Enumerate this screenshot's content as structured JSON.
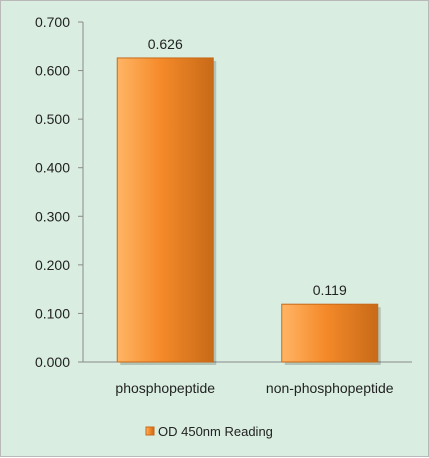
{
  "chart_data": {
    "type": "bar",
    "categories": [
      "phosphopeptide",
      "non-phosphopeptide"
    ],
    "values": [
      0.626,
      0.119
    ],
    "data_labels": [
      "0.626",
      "0.119"
    ],
    "y_ticks": [
      "0.000",
      "0.100",
      "0.200",
      "0.300",
      "0.400",
      "0.500",
      "0.600",
      "0.700"
    ],
    "ylim": [
      0,
      0.7
    ],
    "series": [
      {
        "name": "OD 450nm Reading",
        "values": [
          0.626,
          0.119
        ]
      }
    ],
    "legend_placement": "bottom",
    "grid": false,
    "colors": {
      "bar_light": "#ffb565",
      "bar_mid": "#f58a2a",
      "bar_dark": "#c86a17",
      "axis": "#8a8a8a",
      "background": "#d9eee1"
    }
  }
}
